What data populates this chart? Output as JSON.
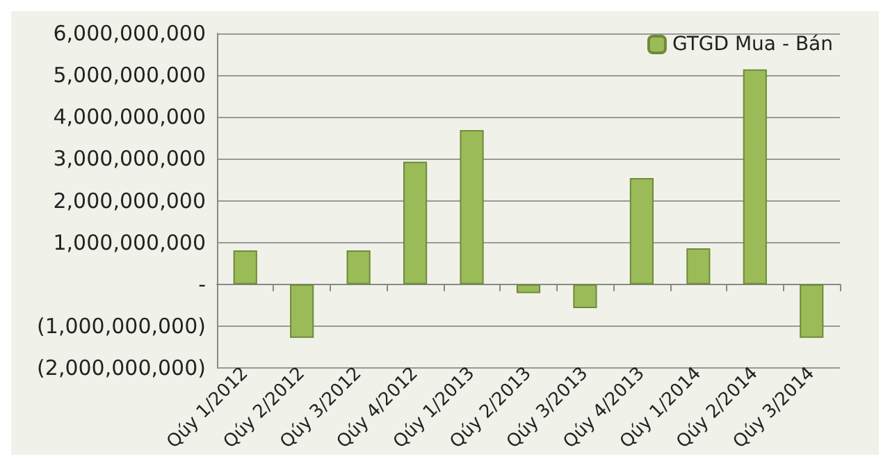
{
  "chart_data": {
    "type": "bar",
    "categories": [
      "Qúy 1/2012",
      "Qúy 2/2012",
      "Qúy 3/2012",
      "Qúy 4/2012",
      "Qúy 1/2013",
      "Qúy 2/2013",
      "Qúy 3/2013",
      "Qúy 4/2013",
      "Qúy 1/2014",
      "Qúy 2/2014",
      "Qúy 3/2014"
    ],
    "series": [
      {
        "name": "GTGD Mua - Bán",
        "color": "#9bbb59",
        "values": [
          810000000,
          -1280000000,
          810000000,
          2930000000,
          3690000000,
          -210000000,
          -570000000,
          2540000000,
          860000000,
          5140000000,
          -1280000000
        ]
      }
    ],
    "ylim": [
      -2000000000,
      6000000000
    ],
    "yticks": [
      {
        "value": -2000000000,
        "label": "(2,000,000,000)"
      },
      {
        "value": -1000000000,
        "label": "(1,000,000,000)"
      },
      {
        "value": 0,
        "label": "-"
      },
      {
        "value": 1000000000,
        "label": "1,000,000,000"
      },
      {
        "value": 2000000000,
        "label": "2,000,000,000"
      },
      {
        "value": 3000000000,
        "label": "3,000,000,000"
      },
      {
        "value": 4000000000,
        "label": "4,000,000,000"
      },
      {
        "value": 5000000000,
        "label": "5,000,000,000"
      },
      {
        "value": 6000000000,
        "label": "6,000,000,000"
      }
    ],
    "grid": "y",
    "legend": "top right"
  }
}
